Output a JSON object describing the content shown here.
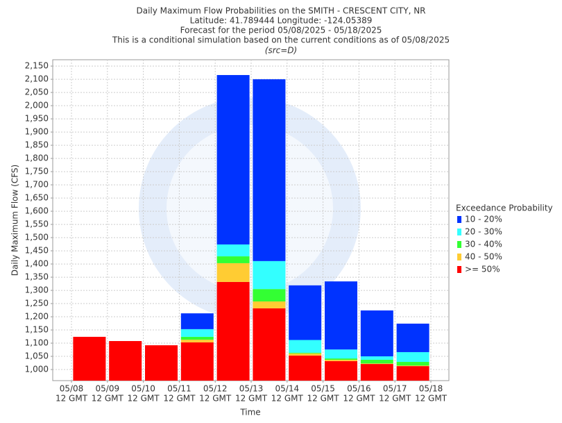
{
  "chart_data": {
    "type": "bar",
    "title": [
      "Daily Maximum Flow Probabilities on the SMITH - CRESCENT CITY, NR",
      "Latitude: 41.789444 Longitude: -124.05389",
      "Forecast for the period 05/08/2025 - 05/18/2025",
      "This is a conditional simulation based on the current conditions as of 05/08/2025"
    ],
    "subtitle": "(src=D)",
    "y_label": "Daily Maximum Flow (CFS)",
    "x_label": "Time",
    "legend_title": "Exceedance Probability",
    "xticks": [
      [
        "05/08",
        "12 GMT"
      ],
      [
        "05/09",
        "12 GMT"
      ],
      [
        "05/10",
        "12 GMT"
      ],
      [
        "05/11",
        "12 GMT"
      ],
      [
        "05/12",
        "12 GMT"
      ],
      [
        "05/13",
        "12 GMT"
      ],
      [
        "05/14",
        "12 GMT"
      ],
      [
        "05/15",
        "12 GMT"
      ],
      [
        "05/16",
        "12 GMT"
      ],
      [
        "05/17",
        "12 GMT"
      ],
      [
        "05/18",
        "12 GMT"
      ]
    ],
    "ylim": [
      958,
      2174
    ],
    "yticks": [
      {
        "value": 1000,
        "label": "1,000"
      },
      {
        "value": 1050,
        "label": "1,050"
      },
      {
        "value": 1100,
        "label": "1,100"
      },
      {
        "value": 1150,
        "label": "1,150"
      },
      {
        "value": 1200,
        "label": "1,200"
      },
      {
        "value": 1250,
        "label": "1,250"
      },
      {
        "value": 1300,
        "label": "1,300"
      },
      {
        "value": 1350,
        "label": "1,350"
      },
      {
        "value": 1400,
        "label": "1,400"
      },
      {
        "value": 1450,
        "label": "1,450"
      },
      {
        "value": 1500,
        "label": "1,500"
      },
      {
        "value": 1550,
        "label": "1,550"
      },
      {
        "value": 1600,
        "label": "1,600"
      },
      {
        "value": 1650,
        "label": "1,650"
      },
      {
        "value": 1700,
        "label": "1,700"
      },
      {
        "value": 1750,
        "label": "1,750"
      },
      {
        "value": 1800,
        "label": "1,800"
      },
      {
        "value": 1850,
        "label": "1,850"
      },
      {
        "value": 1900,
        "label": "1,900"
      },
      {
        "value": 1950,
        "label": "1,950"
      },
      {
        "value": 2000,
        "label": "2,000"
      },
      {
        "value": 2050,
        "label": "2,050"
      },
      {
        "value": 2100,
        "label": "2,100"
      },
      {
        "value": 2150,
        "label": "2,150"
      }
    ],
    "grid": true,
    "series": [
      {
        "name": ">= 50%",
        "color": "#ff0000",
        "values": [
          1124,
          1108,
          1092,
          1103,
          1332,
          1232,
          1053,
          1032,
          1021,
          1013
        ]
      },
      {
        "name": "40 - 50%",
        "color": "#ffcc33",
        "values": [
          0,
          0,
          0,
          10,
          71,
          26,
          8,
          5,
          2,
          2
        ]
      },
      {
        "name": "30 - 40%",
        "color": "#33ff33",
        "values": [
          0,
          0,
          0,
          11,
          26,
          47,
          3,
          5,
          14,
          14
        ]
      },
      {
        "name": "20 - 30%",
        "color": "#33ffff",
        "values": [
          0,
          0,
          0,
          29,
          45,
          106,
          48,
          34,
          13,
          37
        ]
      },
      {
        "name": "10 - 20%",
        "color": "#0033ff",
        "values": [
          0,
          0,
          0,
          60,
          642,
          689,
          207,
          258,
          174,
          108
        ]
      }
    ]
  }
}
